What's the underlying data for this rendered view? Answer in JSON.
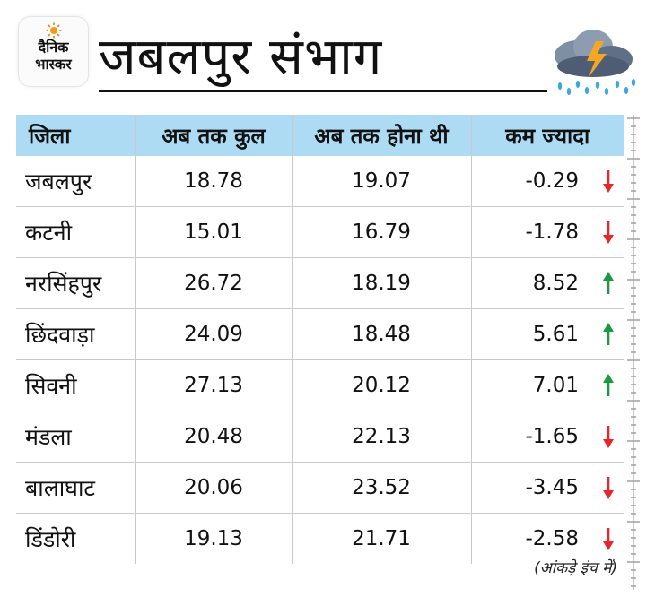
{
  "brand": {
    "logo_text_line1": "दैनिक",
    "logo_text_line2": "भास्कर"
  },
  "title": "जबलपुर संभाग",
  "table": {
    "headers": [
      "जिला",
      "अब तक कुल",
      "अब तक होना थी",
      "कम ज्यादा"
    ],
    "rows": [
      {
        "district": "जबलपुर",
        "total": "18.78",
        "expected": "19.07",
        "diff": "-0.29",
        "trend": "down"
      },
      {
        "district": "कटनी",
        "total": "15.01",
        "expected": "16.79",
        "diff": "-1.78",
        "trend": "down"
      },
      {
        "district": "नरसिंहपुर",
        "total": "26.72",
        "expected": "18.19",
        "diff": "8.52",
        "trend": "up"
      },
      {
        "district": "छिंदवाड़ा",
        "total": "24.09",
        "expected": "18.48",
        "diff": "5.61",
        "trend": "up"
      },
      {
        "district": "सिवनी",
        "total": "27.13",
        "expected": "20.12",
        "diff": "7.01",
        "trend": "up"
      },
      {
        "district": "मंडला",
        "total": "20.48",
        "expected": "22.13",
        "diff": "-1.65",
        "trend": "down"
      },
      {
        "district": "बालाघाट",
        "total": "20.06",
        "expected": "23.52",
        "diff": "-3.45",
        "trend": "down"
      },
      {
        "district": "डिंडोरी",
        "total": "19.13",
        "expected": "21.71",
        "diff": "-2.58",
        "trend": "down"
      }
    ]
  },
  "note": "(आंकड़े इंच में)",
  "colors": {
    "header_bg": "#aedbf4",
    "up": "#1a9a3f",
    "down": "#e5262b"
  }
}
